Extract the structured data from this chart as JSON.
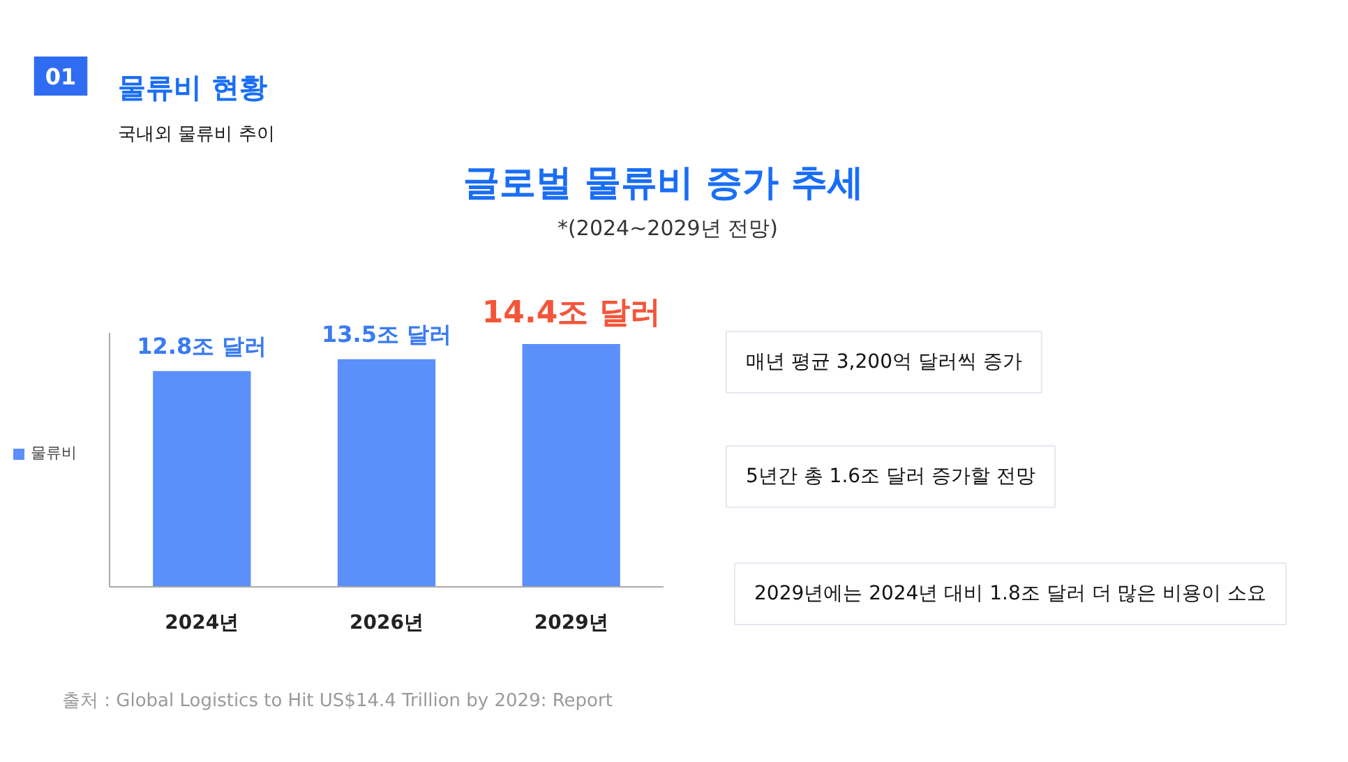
{
  "chart_data": {
    "type": "bar",
    "title": "글로벌 물류비 증가 추세",
    "subtitle": "*(2024~2029년 전망)",
    "categories": [
      "2024년",
      "2026년",
      "2029년"
    ],
    "series": [
      {
        "name": "물류비",
        "color": "#5b8ff9",
        "values": [
          12.8,
          13.5,
          14.4
        ],
        "value_labels": [
          "12.8조 달러",
          "13.5조 달러",
          "14.4조 달러"
        ]
      }
    ],
    "legend": "left",
    "grid": false,
    "annotations": [
      "01",
      "물류비 현황",
      "국내외 물류비 추이",
      "매년 평균 3,200억 달러씩 증가",
      "5년간 총 1.6조 달러 증가할 전망",
      "2029년에는 2024년 대비 1.8조 달러 더 많은 비용이 소요",
      "출처 : Global Logistics to Hit US$14.4 Trillion by 2029: Report"
    ]
  }
}
